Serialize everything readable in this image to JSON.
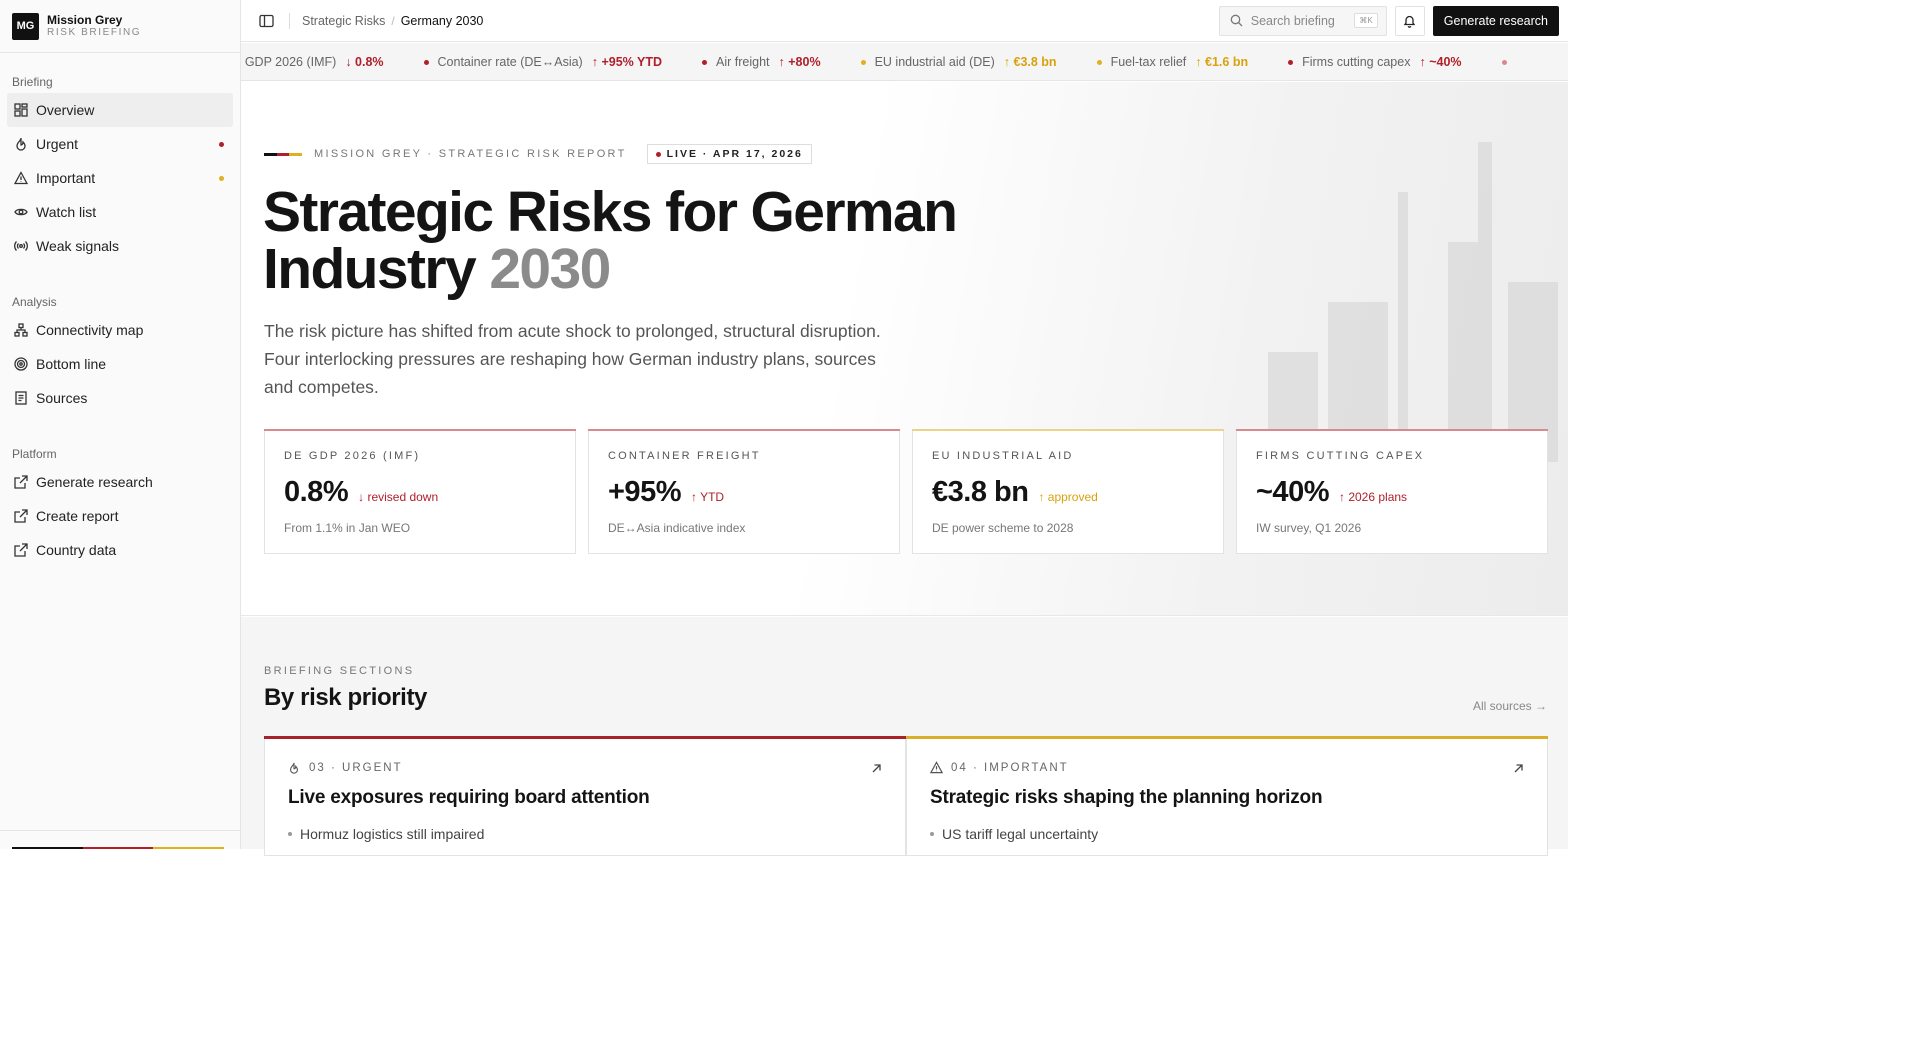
{
  "brand": {
    "logo": "MG",
    "name": "Mission Grey",
    "sub": "RISK BRIEFING"
  },
  "sidebar": {
    "groups": [
      {
        "label": "Briefing",
        "items": [
          {
            "label": "Overview",
            "icon": "grid-icon",
            "active": true
          },
          {
            "label": "Urgent",
            "icon": "flame-icon",
            "dot": "#b0202a"
          },
          {
            "label": "Important",
            "icon": "warning-icon",
            "dot": "#e0b020"
          },
          {
            "label": "Watch list",
            "icon": "eye-icon"
          },
          {
            "label": "Weak signals",
            "icon": "signal-icon"
          }
        ]
      },
      {
        "label": "Analysis",
        "items": [
          {
            "label": "Connectivity map",
            "icon": "network-icon"
          },
          {
            "label": "Bottom line",
            "icon": "target-icon"
          },
          {
            "label": "Sources",
            "icon": "document-icon"
          }
        ]
      },
      {
        "label": "Platform",
        "items": [
          {
            "label": "Generate research",
            "icon": "external-link-icon"
          },
          {
            "label": "Create report",
            "icon": "external-link-icon"
          },
          {
            "label": "Country data",
            "icon": "external-link-icon"
          }
        ]
      }
    ]
  },
  "topbar": {
    "breadcrumb": [
      "Strategic Risks",
      "Germany 2030"
    ],
    "search_placeholder": "Search briefing",
    "search_kbd": "⌘K",
    "generate_label": "Generate research"
  },
  "ticker": [
    {
      "label": "DE GDP 2026 (IMF)",
      "value": "↓ 0.8%",
      "tone": "red",
      "dot": false
    },
    {
      "label": "Container rate (DE↔Asia)",
      "value": "↑ +95% YTD",
      "tone": "red",
      "dot": true
    },
    {
      "label": "Air freight",
      "value": "↑ +80%",
      "tone": "red",
      "dot": true
    },
    {
      "label": "EU industrial aid (DE)",
      "value": "↑ €3.8 bn",
      "tone": "amber",
      "dot": true
    },
    {
      "label": "Fuel-tax relief",
      "value": "↑ €1.6 bn",
      "tone": "amber",
      "dot": true
    },
    {
      "label": "Firms cutting capex",
      "value": "↑ ~40%",
      "tone": "red",
      "dot": true
    }
  ],
  "hero": {
    "eyebrow": "MISSION GREY · STRATEGIC RISK REPORT",
    "live": "LIVE · APR 17, 2026",
    "title": "Strategic Risks for German Industry",
    "title_year": "2030",
    "lead": "The risk picture has shifted from acute shock to prolonged, structural disruption. Four interlocking pressures are reshaping how German industry plans, sources and competes."
  },
  "kpis": [
    {
      "label": "DE GDP 2026 (IMF)",
      "value": "0.8%",
      "delta": "↓ revised down",
      "tone": "red",
      "note": "From 1.1% in Jan WEO",
      "line": "#d98a8f"
    },
    {
      "label": "CONTAINER FREIGHT",
      "value": "+95%",
      "delta": "↑ YTD",
      "tone": "red",
      "note": "DE↔Asia indicative index",
      "line": "#d98a8f"
    },
    {
      "label": "EU INDUSTRIAL AID",
      "value": "€3.8 bn",
      "delta": "↑ approved",
      "tone": "amber",
      "note": "DE power scheme to 2028",
      "line": "#ecd28a"
    },
    {
      "label": "FIRMS CUTTING CAPEX",
      "value": "~40%",
      "delta": "↑ 2026 plans",
      "tone": "red",
      "note": "IW survey, Q1 2026",
      "line": "#d98a8f"
    }
  ],
  "sections": {
    "eyebrow": "BRIEFING SECTIONS",
    "title": "By risk priority",
    "all_sources": "All sources →",
    "cards": [
      {
        "meta": "03 · URGENT",
        "icon": "flame-icon",
        "title": "Live exposures requiring board attention",
        "bullet": "Hormuz logistics still impaired",
        "line": "#a8202a"
      },
      {
        "meta": "04 · IMPORTANT",
        "icon": "warning-icon",
        "title": "Strategic risks shaping the planning horizon",
        "bullet": "US tariff legal uncertainty",
        "line": "#d9ae2a"
      }
    ]
  },
  "colors": {
    "red": "#b0202a",
    "amber": "#d9a20c",
    "flag_black": "#111111",
    "flag_red": "#b0202a",
    "flag_gold": "#e0b020"
  }
}
